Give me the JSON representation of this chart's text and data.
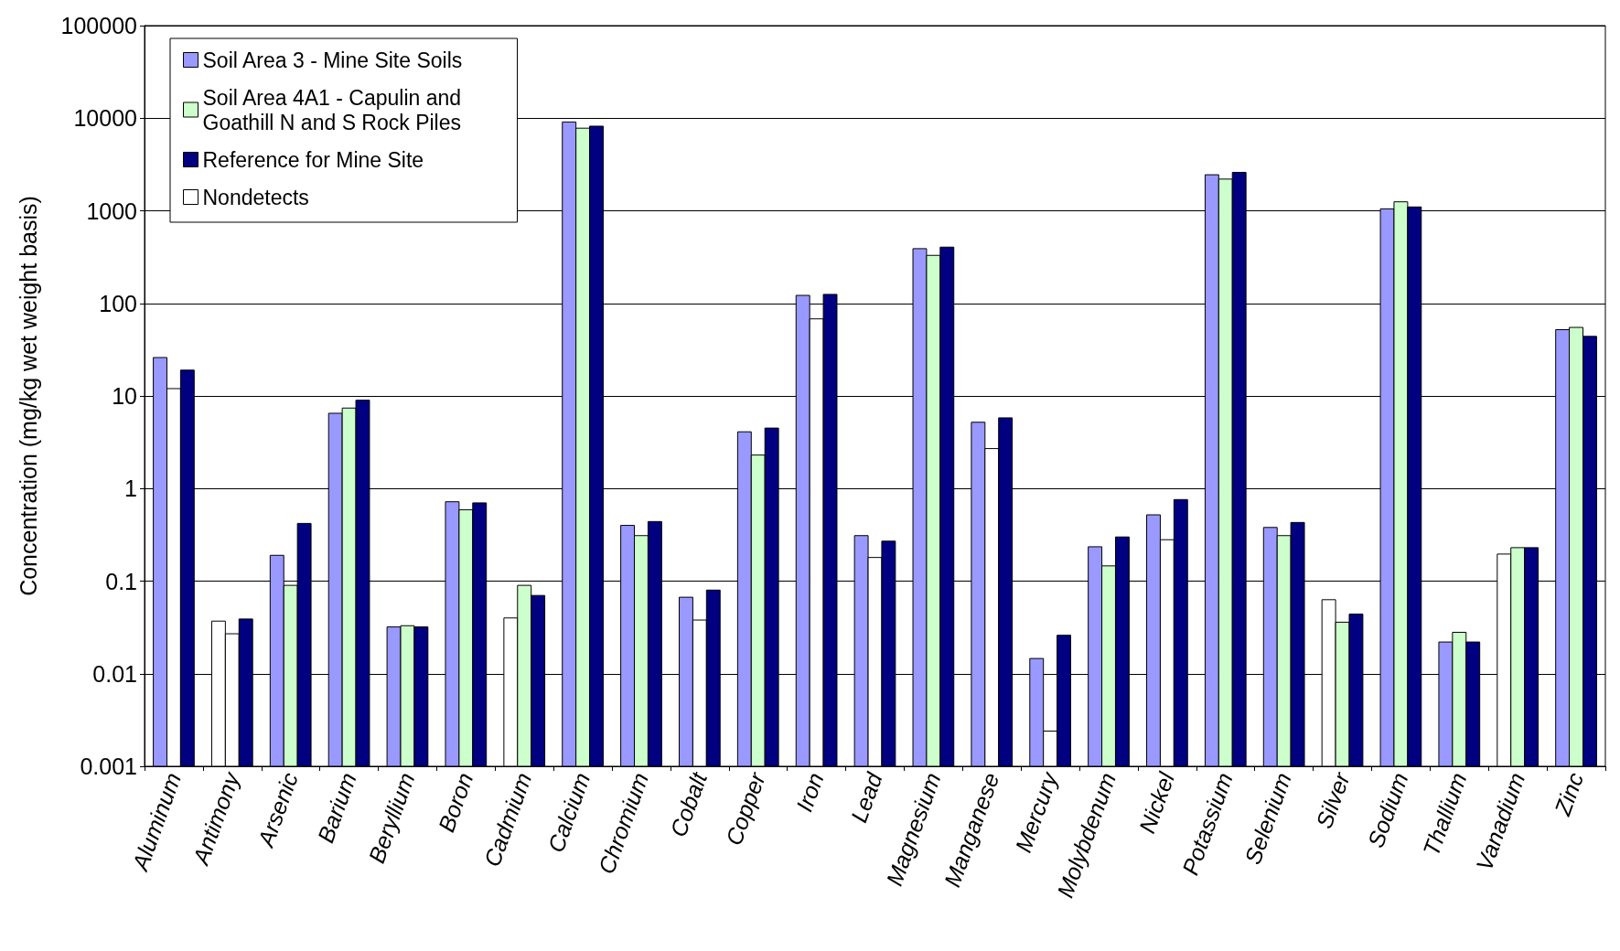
{
  "chart_data": {
    "type": "bar",
    "ylabel": "Concentration (mg/kg wet weight basis)",
    "categories": [
      "Aluminum",
      "Antimony",
      "Arsenic",
      "Barium",
      "Beryllium",
      "Boron",
      "Cadmium",
      "Calcium",
      "Chromium",
      "Cobalt",
      "Copper",
      "Iron",
      "Lead",
      "Magnesium",
      "Manganese",
      "Mercury",
      "Molybdenum",
      "Nickel",
      "Potassium",
      "Selenium",
      "Silver",
      "Sodium",
      "Thallium",
      "Vanadium",
      "Zinc"
    ],
    "series": [
      {
        "name": "Soil Area 3 - Mine Site Soils",
        "color": "#9999ff",
        "values": [
          26,
          0.037,
          0.19,
          6.5,
          0.032,
          0.72,
          0.04,
          9100,
          0.4,
          0.067,
          4.1,
          122,
          0.31,
          390,
          5.2,
          0.0146,
          0.235,
          0.52,
          2450,
          0.38,
          0.063,
          1050,
          0.022,
          0.196,
          52
        ],
        "colors": [
          "#9999ff",
          "#ffffff",
          "#9999ff",
          "#9999ff",
          "#9999ff",
          "#9999ff",
          "#ffffff",
          "#9999ff",
          "#9999ff",
          "#9999ff",
          "#9999ff",
          "#9999ff",
          "#9999ff",
          "#9999ff",
          "#9999ff",
          "#9999ff",
          "#9999ff",
          "#9999ff",
          "#9999ff",
          "#9999ff",
          "#ffffff",
          "#9999ff",
          "#9999ff",
          "#ffffff",
          "#9999ff"
        ]
      },
      {
        "name": "Soil Area 4A1 - Capulin and Goathill N and S Rock Piles",
        "color": "#ccffcc",
        "values": [
          12,
          0.027,
          0.09,
          7.4,
          0.033,
          0.59,
          0.09,
          7800,
          0.31,
          0.038,
          2.3,
          68,
          0.18,
          330,
          2.7,
          0.0024,
          0.146,
          0.28,
          2200,
          0.31,
          0.036,
          1250,
          0.028,
          0.23,
          55
        ],
        "colors": [
          "#ffffff",
          "#ffffff",
          "#ccffcc",
          "#ccffcc",
          "#ccffcc",
          "#ccffcc",
          "#ccffcc",
          "#ccffcc",
          "#ccffcc",
          "#ffffff",
          "#ccffcc",
          "#ffffff",
          "#ffffff",
          "#ccffcc",
          "#ffffff",
          "#ffffff",
          "#ccffcc",
          "#ffffff",
          "#ccffcc",
          "#ccffcc",
          "#ccffcc",
          "#ccffcc",
          "#ccffcc",
          "#ccffcc",
          "#ccffcc"
        ]
      },
      {
        "name": "Reference for Mine Site",
        "color": "#000080",
        "values": [
          19,
          0.039,
          0.42,
          9,
          0.032,
          0.7,
          0.07,
          8200,
          0.44,
          0.08,
          4.5,
          125,
          0.27,
          405,
          5.8,
          0.026,
          0.3,
          0.76,
          2600,
          0.43,
          0.044,
          1100,
          0.022,
          0.23,
          44
        ]
      },
      {
        "name": "Nondetects",
        "color": "#ffffff",
        "values": [
          null,
          null,
          null,
          null,
          null,
          null,
          null,
          null,
          null,
          null,
          null,
          null,
          null,
          null,
          null,
          null,
          null,
          null,
          null,
          null,
          null,
          null,
          null,
          null,
          null
        ]
      }
    ],
    "log": "y",
    "ylim": [
      0.001,
      100000
    ],
    "yticks": [
      0.001,
      0.01,
      0.1,
      1,
      10,
      100,
      1000,
      10000,
      100000
    ],
    "grid": "y",
    "legend": "top left"
  }
}
